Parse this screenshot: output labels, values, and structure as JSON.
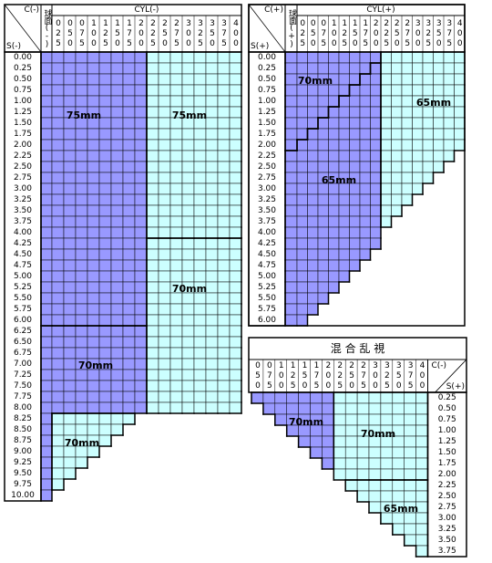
{
  "colors": {
    "purple": "#9999ff",
    "cyan": "#ccffff"
  },
  "left_table": {
    "corner_top": "C(-)",
    "corner_bottom": "S(-)",
    "sphere_header": "球面(-)",
    "cyl_header": "CYL(-)",
    "columns": [
      "025",
      "050",
      "075",
      "100",
      "125",
      "150",
      "175",
      "200",
      "225",
      "250",
      "275",
      "300",
      "325",
      "350",
      "375",
      "400"
    ],
    "rows": [
      "0.00",
      "0.25",
      "0.50",
      "0.75",
      "1.00",
      "1.25",
      "1.50",
      "1.75",
      "2.00",
      "2.25",
      "2.50",
      "2.75",
      "3.00",
      "3.25",
      "3.50",
      "3.75",
      "4.00",
      "4.25",
      "4.50",
      "4.75",
      "5.00",
      "5.25",
      "5.50",
      "5.75",
      "6.00",
      "6.25",
      "6.50",
      "6.75",
      "7.00",
      "7.25",
      "7.50",
      "7.75",
      "8.00",
      "8.25",
      "8.50",
      "8.75",
      "9.00",
      "9.25",
      "9.50",
      "9.75",
      "10.00"
    ],
    "zone_labels": [
      "75mm",
      "75mm",
      "70mm",
      "70mm",
      "70mm"
    ]
  },
  "right_table": {
    "corner_top": "C(+)",
    "corner_bottom": "S(+)",
    "sphere_header": "球面(+)",
    "cyl_header": "CYL(+)",
    "columns": [
      "025",
      "050",
      "075",
      "100",
      "125",
      "150",
      "175",
      "200",
      "225",
      "250",
      "275",
      "300",
      "325",
      "350",
      "375",
      "400"
    ],
    "rows": [
      "0.00",
      "0.25",
      "0.50",
      "0.75",
      "1.00",
      "1.25",
      "1.50",
      "1.75",
      "2.00",
      "2.25",
      "2.50",
      "2.75",
      "3.00",
      "3.25",
      "3.50",
      "3.75",
      "4.00",
      "4.25",
      "4.50",
      "4.75",
      "5.00",
      "5.25",
      "5.50",
      "5.75",
      "6.00"
    ],
    "zone_labels": [
      "70mm",
      "65mm",
      "65mm"
    ]
  },
  "mixed_table": {
    "title": "混 合 乱 視",
    "corner_top": "C(-)",
    "corner_bottom": "S(+)",
    "columns": [
      "050",
      "075",
      "100",
      "125",
      "150",
      "175",
      "200",
      "225",
      "250",
      "275",
      "300",
      "325",
      "350",
      "375",
      "400"
    ],
    "rows": [
      "0.25",
      "0.50",
      "0.75",
      "1.00",
      "1.25",
      "1.50",
      "1.75",
      "2.00",
      "2.25",
      "2.50",
      "2.75",
      "3.00",
      "3.25",
      "3.50",
      "3.75"
    ],
    "zone_labels": [
      "70mm",
      "70mm",
      "65mm"
    ]
  }
}
